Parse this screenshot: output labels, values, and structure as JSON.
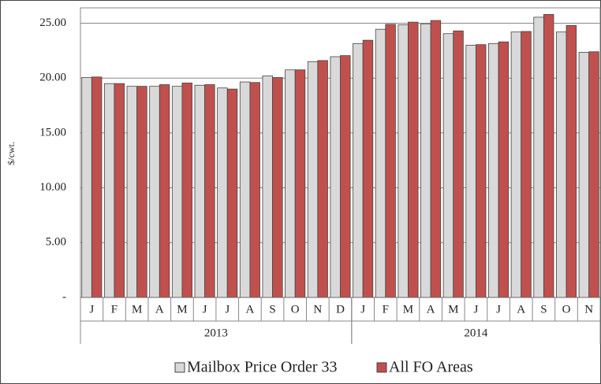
{
  "chart_data": {
    "type": "bar",
    "y_label": "$/cwt.",
    "categories": [
      "J",
      "F",
      "M",
      "A",
      "M",
      "J",
      "J",
      "A",
      "S",
      "O",
      "N",
      "D",
      "J",
      "F",
      "M",
      "A",
      "M",
      "J",
      "J",
      "A",
      "S",
      "O",
      "N"
    ],
    "groups": [
      {
        "label": "2013",
        "count": 12
      },
      {
        "label": "2014",
        "count": 11
      }
    ],
    "series": [
      {
        "name": "Mailbox Price Order 33",
        "color": "#d9d9d9",
        "values": [
          20.05,
          19.5,
          19.25,
          19.25,
          19.25,
          19.35,
          19.1,
          19.65,
          20.2,
          20.75,
          21.5,
          21.95,
          23.15,
          24.45,
          24.85,
          24.95,
          24.05,
          23.0,
          23.15,
          24.2,
          25.55,
          24.2,
          22.35
        ]
      },
      {
        "name": "All FO Areas",
        "color": "#c0504d",
        "values": [
          20.1,
          19.5,
          19.25,
          19.4,
          19.55,
          19.4,
          19.0,
          19.6,
          20.05,
          20.75,
          21.6,
          22.05,
          23.45,
          24.9,
          25.1,
          25.25,
          24.3,
          23.05,
          23.3,
          24.25,
          25.8,
          24.8,
          22.4
        ]
      }
    ],
    "ylim": [
      0,
      26.4
    ],
    "yticks": [
      {
        "value": 0,
        "label": "-"
      },
      {
        "value": 5,
        "label": "5.00"
      },
      {
        "value": 10,
        "label": "10.00"
      },
      {
        "value": 15,
        "label": "15.00"
      },
      {
        "value": 20,
        "label": "20.00"
      },
      {
        "value": 25,
        "label": "25.00"
      }
    ],
    "grid": true
  }
}
